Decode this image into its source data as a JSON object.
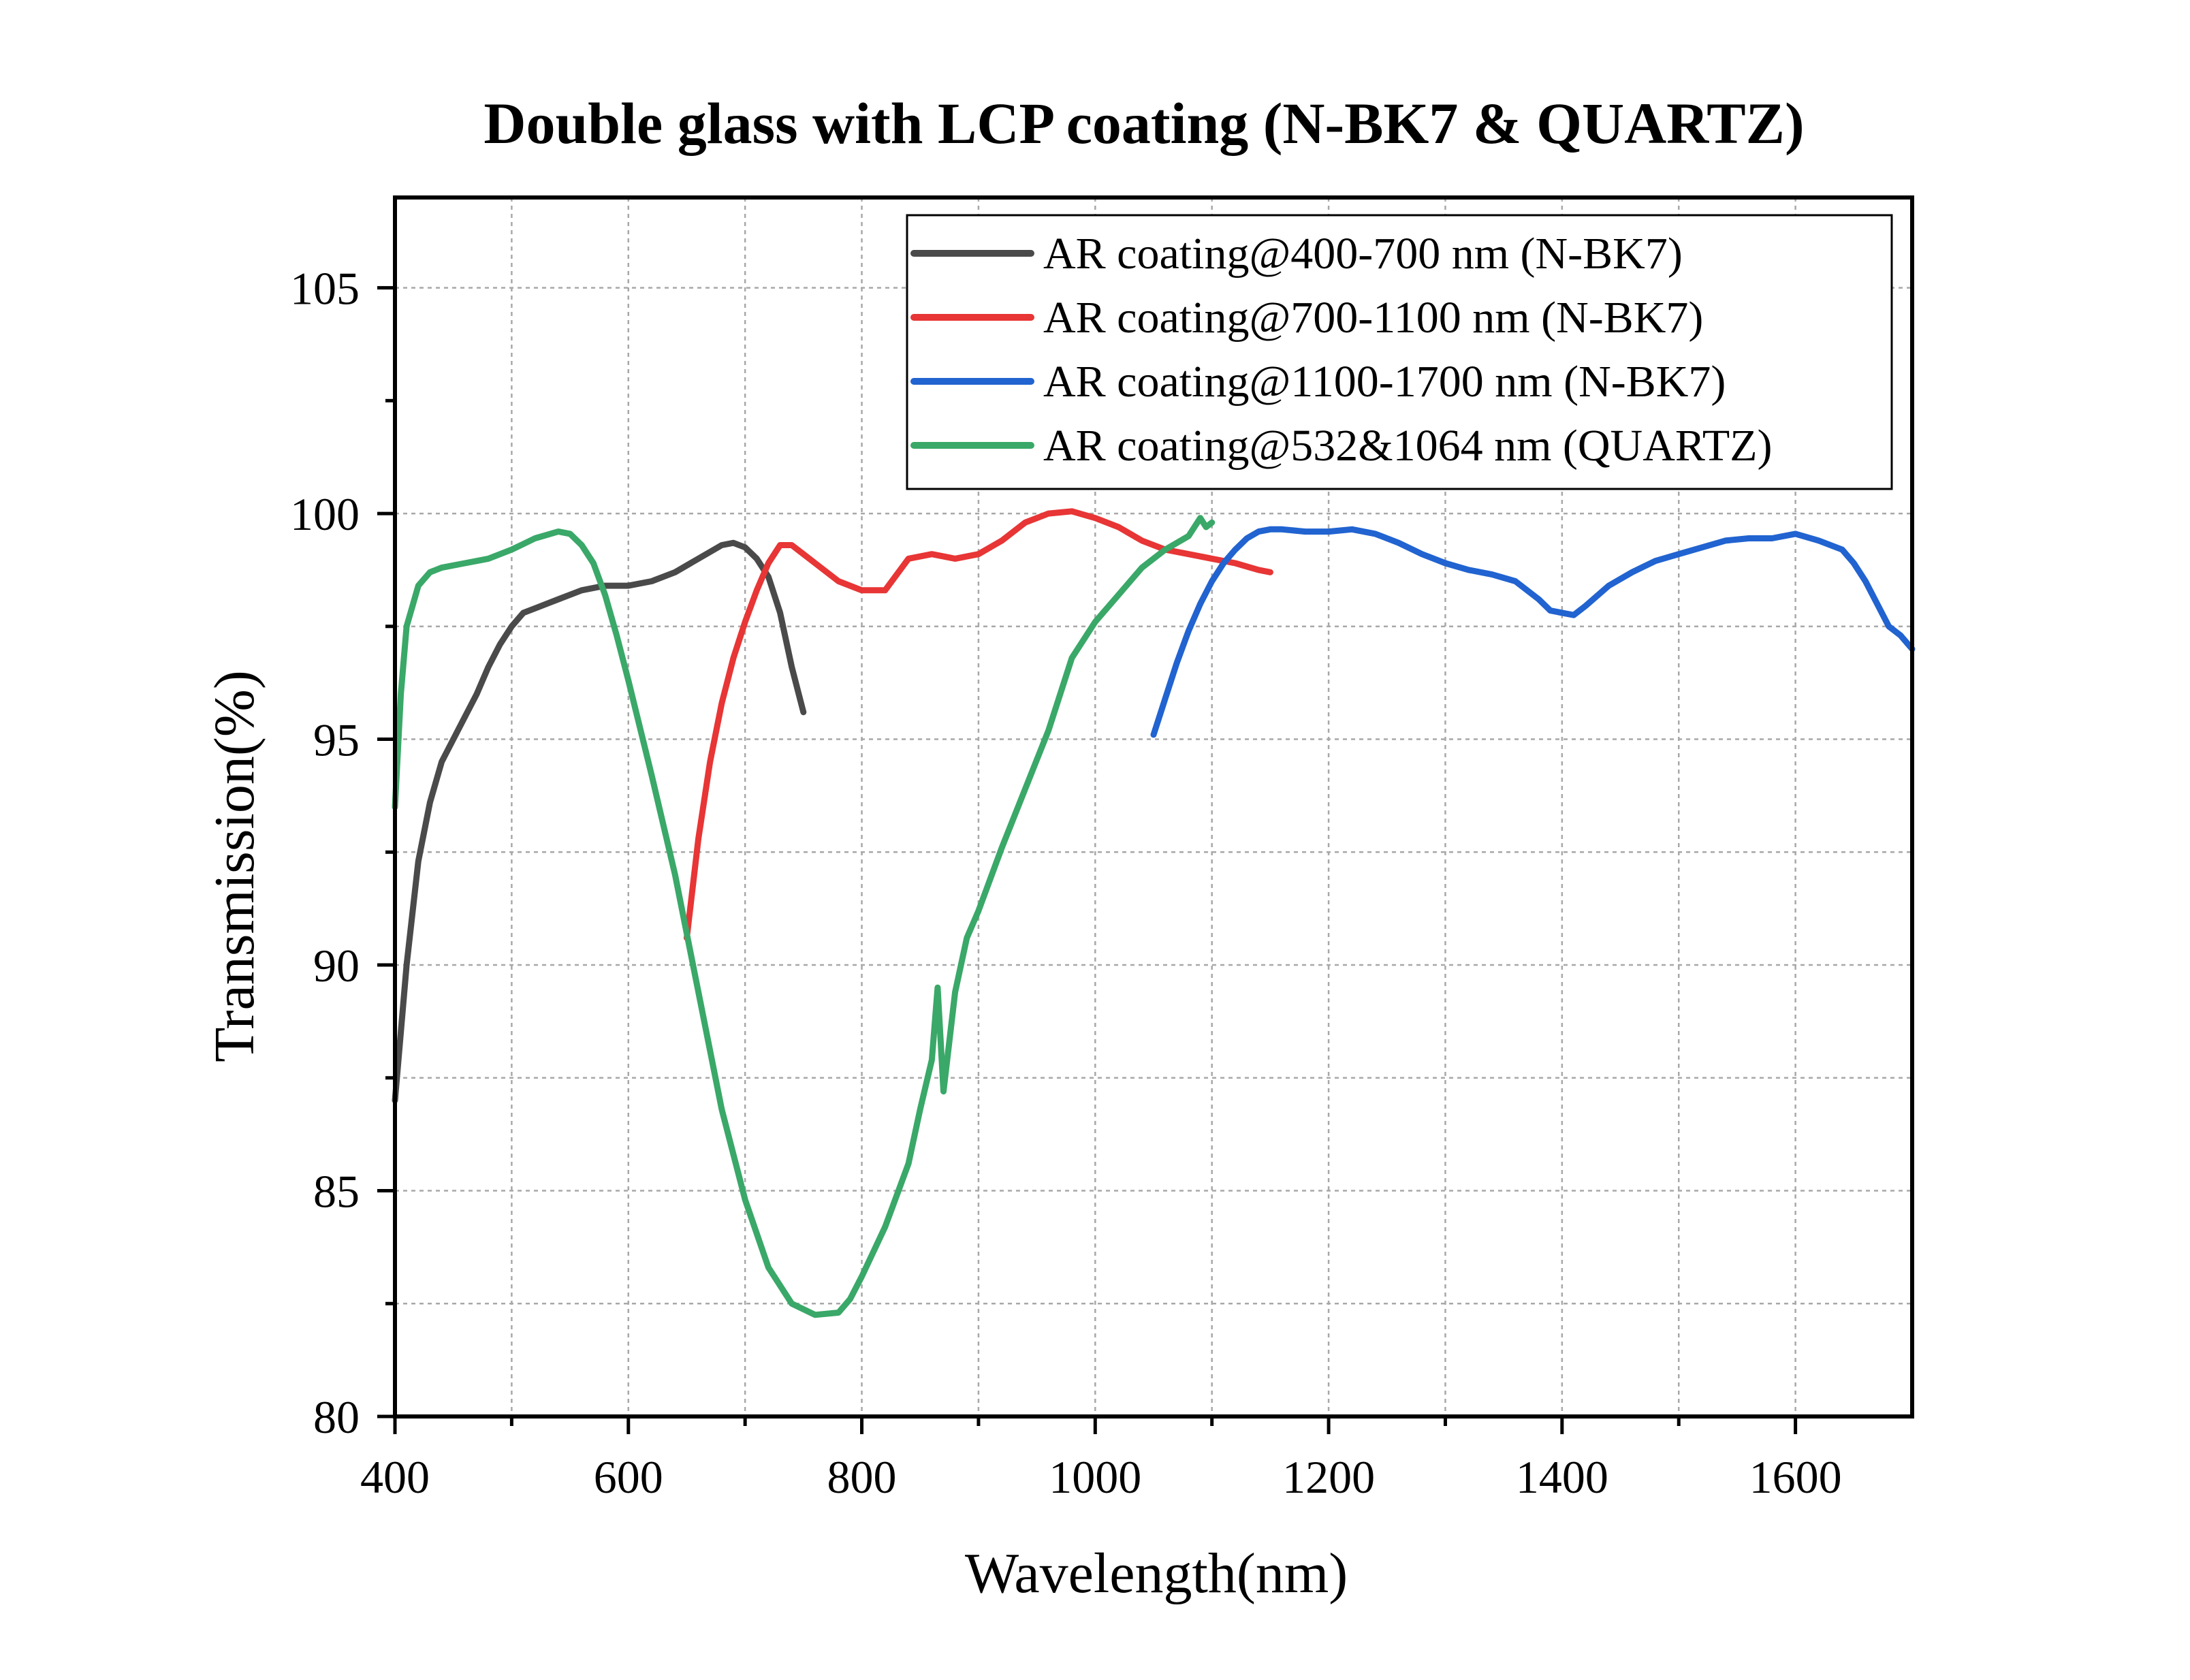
{
  "chart_data": {
    "type": "line",
    "title": "Double glass with LCP coating (N-BK7 & QUARTZ)",
    "xlabel": "Wavelength(nm)",
    "ylabel": "Transmission(%)",
    "xlim": [
      400,
      1700
    ],
    "ylim": [
      80,
      107
    ],
    "xticks": [
      400,
      600,
      800,
      1000,
      1200,
      1400,
      1600
    ],
    "yticks": [
      80,
      85,
      90,
      95,
      100,
      105
    ],
    "grid": true,
    "legend_position": "top-right",
    "series": [
      {
        "name": "AR coating@400-700 nm (N-BK7)",
        "color": "#4a4a4a",
        "x": [
          400,
          410,
          420,
          430,
          440,
          450,
          460,
          470,
          480,
          490,
          500,
          510,
          520,
          540,
          560,
          580,
          600,
          620,
          640,
          660,
          680,
          690,
          700,
          710,
          720,
          730,
          740,
          750
        ],
        "y": [
          87.0,
          90.0,
          92.3,
          93.6,
          94.5,
          95.0,
          95.5,
          96.0,
          96.6,
          97.1,
          97.5,
          97.8,
          97.9,
          98.1,
          98.3,
          98.4,
          98.4,
          98.5,
          98.7,
          99.0,
          99.3,
          99.35,
          99.25,
          99.0,
          98.6,
          97.8,
          96.6,
          95.6
        ]
      },
      {
        "name": "AR coating@700-1100 nm (N-BK7)",
        "color": "#e83535",
        "x": [
          650,
          660,
          670,
          680,
          690,
          700,
          710,
          720,
          730,
          740,
          750,
          760,
          780,
          800,
          820,
          840,
          860,
          880,
          900,
          920,
          940,
          960,
          980,
          1000,
          1020,
          1040,
          1060,
          1080,
          1100,
          1120,
          1140,
          1150
        ],
        "y": [
          90.6,
          92.8,
          94.5,
          95.8,
          96.8,
          97.6,
          98.3,
          98.9,
          99.3,
          99.3,
          99.1,
          98.9,
          98.5,
          98.3,
          98.3,
          99.0,
          99.1,
          99.0,
          99.1,
          99.4,
          99.8,
          100.0,
          100.05,
          99.9,
          99.7,
          99.4,
          99.2,
          99.1,
          99.0,
          98.9,
          98.75,
          98.7
        ]
      },
      {
        "name": "AR coating@1100-1700 nm (N-BK7)",
        "color": "#2163d0",
        "x": [
          1050,
          1060,
          1070,
          1080,
          1090,
          1100,
          1110,
          1120,
          1130,
          1140,
          1150,
          1160,
          1180,
          1200,
          1220,
          1240,
          1260,
          1280,
          1300,
          1320,
          1340,
          1360,
          1380,
          1390,
          1400,
          1410,
          1420,
          1440,
          1460,
          1480,
          1500,
          1520,
          1540,
          1560,
          1580,
          1600,
          1620,
          1640,
          1650,
          1660,
          1670,
          1680,
          1690,
          1700
        ],
        "y": [
          95.1,
          95.9,
          96.7,
          97.4,
          98.0,
          98.5,
          98.9,
          99.2,
          99.45,
          99.6,
          99.65,
          99.65,
          99.6,
          99.6,
          99.65,
          99.55,
          99.35,
          99.1,
          98.9,
          98.75,
          98.65,
          98.5,
          98.1,
          97.85,
          97.8,
          97.75,
          97.95,
          98.4,
          98.7,
          98.95,
          99.1,
          99.25,
          99.4,
          99.45,
          99.45,
          99.55,
          99.4,
          99.2,
          98.9,
          98.5,
          98.0,
          97.5,
          97.3,
          97.0
        ]
      },
      {
        "name": "AR coating@532&1064 nm (QUARTZ)",
        "color": "#3aa868",
        "x": [
          400,
          405,
          410,
          420,
          430,
          440,
          460,
          480,
          500,
          520,
          540,
          550,
          560,
          570,
          580,
          590,
          600,
          620,
          640,
          660,
          680,
          700,
          720,
          740,
          760,
          780,
          790,
          800,
          820,
          840,
          850,
          860,
          865,
          870,
          880,
          890,
          900,
          920,
          940,
          960,
          980,
          1000,
          1020,
          1040,
          1060,
          1080,
          1090,
          1095,
          1100
        ],
        "y": [
          93.5,
          96.0,
          97.5,
          98.4,
          98.7,
          98.8,
          98.9,
          99.0,
          99.2,
          99.45,
          99.6,
          99.55,
          99.3,
          98.9,
          98.2,
          97.3,
          96.3,
          94.2,
          92.0,
          89.4,
          86.8,
          84.8,
          83.3,
          82.5,
          82.25,
          82.3,
          82.6,
          83.1,
          84.2,
          85.6,
          86.8,
          87.9,
          89.5,
          87.2,
          89.4,
          90.6,
          91.2,
          92.6,
          93.9,
          95.2,
          96.8,
          97.6,
          98.2,
          98.8,
          99.2,
          99.5,
          99.9,
          99.7,
          99.8
        ]
      }
    ]
  }
}
